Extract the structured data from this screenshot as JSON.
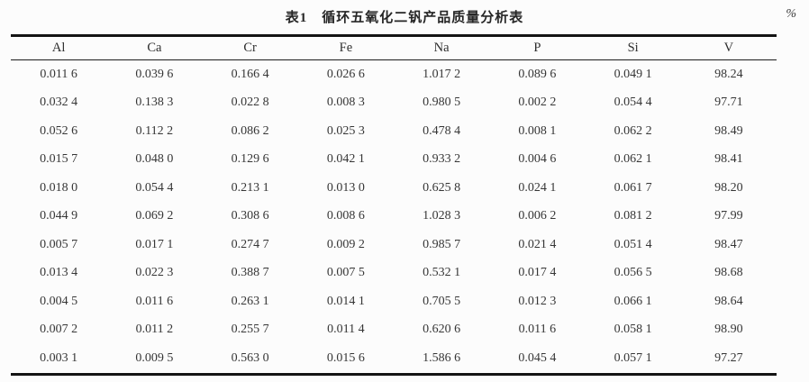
{
  "page": {
    "title": "表1　循环五氧化二钒产品质量分析表",
    "unit_label": "%"
  },
  "table": {
    "columns": [
      "Al",
      "Ca",
      "Cr",
      "Fe",
      "Na",
      "P",
      "Si",
      "V"
    ],
    "rows": [
      [
        "0.011 6",
        "0.039 6",
        "0.166 4",
        "0.026 6",
        "1.017 2",
        "0.089 6",
        "0.049 1",
        "98.24"
      ],
      [
        "0.032 4",
        "0.138 3",
        "0.022 8",
        "0.008 3",
        "0.980 5",
        "0.002 2",
        "0.054 4",
        "97.71"
      ],
      [
        "0.052 6",
        "0.112 2",
        "0.086 2",
        "0.025 3",
        "0.478 4",
        "0.008 1",
        "0.062 2",
        "98.49"
      ],
      [
        "0.015 7",
        "0.048 0",
        "0.129 6",
        "0.042 1",
        "0.933 2",
        "0.004 6",
        "0.062 1",
        "98.41"
      ],
      [
        "0.018 0",
        "0.054 4",
        "0.213 1",
        "0.013 0",
        "0.625 8",
        "0.024 1",
        "0.061 7",
        "98.20"
      ],
      [
        "0.044 9",
        "0.069 2",
        "0.308 6",
        "0.008 6",
        "1.028 3",
        "0.006 2",
        "0.081 2",
        "97.99"
      ],
      [
        "0.005 7",
        "0.017 1",
        "0.274 7",
        "0.009 2",
        "0.985 7",
        "0.021 4",
        "0.051 4",
        "98.47"
      ],
      [
        "0.013 4",
        "0.022 3",
        "0.388 7",
        "0.007 5",
        "0.532 1",
        "0.017 4",
        "0.056 5",
        "98.68"
      ],
      [
        "0.004 5",
        "0.011 6",
        "0.263 1",
        "0.014 1",
        "0.705 5",
        "0.012 3",
        "0.066 1",
        "98.64"
      ],
      [
        "0.007 2",
        "0.011 2",
        "0.255 7",
        "0.011 4",
        "0.620 6",
        "0.011 6",
        "0.058 1",
        "98.90"
      ],
      [
        "0.003 1",
        "0.009 5",
        "0.563 0",
        "0.015 6",
        "1.586 6",
        "0.045 4",
        "0.057 1",
        "97.27"
      ]
    ]
  }
}
